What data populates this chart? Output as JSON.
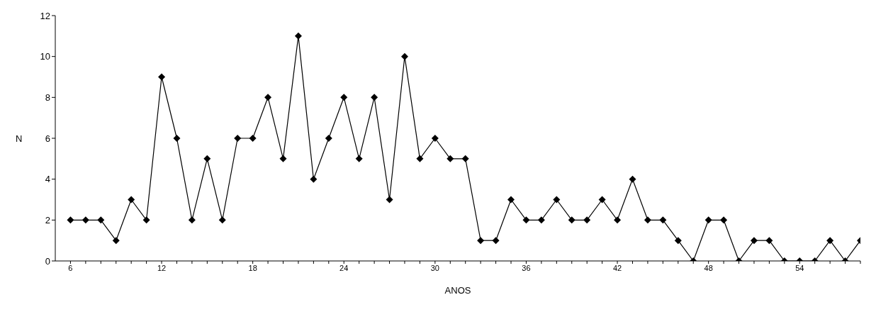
{
  "chart_data": {
    "type": "line",
    "xlabel": "ANOS",
    "ylabel": "N",
    "x": [
      6,
      7,
      8,
      9,
      10,
      11,
      12,
      13,
      14,
      15,
      16,
      17,
      18,
      19,
      20,
      21,
      22,
      23,
      24,
      25,
      26,
      27,
      28,
      29,
      30,
      31,
      32,
      33,
      34,
      35,
      36,
      37,
      38,
      39,
      40,
      41,
      42,
      43,
      44,
      45,
      46,
      47,
      48,
      49,
      50,
      51,
      52,
      53,
      54,
      55,
      56,
      57,
      58
    ],
    "series": [
      {
        "color": "#000000",
        "values": [
          2,
          2,
          2,
          1,
          3,
          2,
          9,
          6,
          2,
          5,
          2,
          6,
          6,
          8,
          5,
          11,
          4,
          6,
          8,
          5,
          8,
          3,
          10,
          5,
          6,
          5,
          5,
          1,
          1,
          3,
          2,
          2,
          3,
          2,
          2,
          3,
          2,
          4,
          2,
          2,
          1,
          0,
          2,
          2,
          0,
          1,
          1,
          0,
          0,
          0,
          1,
          0,
          1
        ]
      }
    ],
    "xlim": [
      5,
      58
    ],
    "xticks": [
      6,
      {
        "value": 7,
        "label": null
      },
      {
        "value": 8,
        "label": null
      },
      {
        "value": 9,
        "label": null
      },
      {
        "value": 10,
        "label": null
      },
      {
        "value": 11,
        "label": null
      },
      12,
      {
        "value": 13,
        "label": null
      },
      {
        "value": 14,
        "label": null
      },
      {
        "value": 15,
        "label": null
      },
      {
        "value": 16,
        "label": null
      },
      {
        "value": 17,
        "label": null
      },
      18,
      {
        "value": 19,
        "label": null
      },
      {
        "value": 20,
        "label": null
      },
      {
        "value": 21,
        "label": null
      },
      {
        "value": 22,
        "label": null
      },
      {
        "value": 23,
        "label": null
      },
      24,
      {
        "value": 25,
        "label": null
      },
      {
        "value": 26,
        "label": null
      },
      {
        "value": 27,
        "label": null
      },
      {
        "value": 28,
        "label": null
      },
      {
        "value": 29,
        "label": null
      },
      30,
      {
        "value": 31,
        "label": null
      },
      {
        "value": 32,
        "label": null
      },
      {
        "value": 33,
        "label": null
      },
      {
        "value": 34,
        "label": null
      },
      {
        "value": 35,
        "label": null
      },
      36,
      {
        "value": 37,
        "label": null
      },
      {
        "value": 38,
        "label": null
      },
      {
        "value": 39,
        "label": null
      },
      {
        "value": 40,
        "label": null
      },
      {
        "value": 41,
        "label": null
      },
      42,
      {
        "value": 43,
        "label": null
      },
      {
        "value": 44,
        "label": null
      },
      {
        "value": 45,
        "label": null
      },
      {
        "value": 46,
        "label": null
      },
      {
        "value": 47,
        "label": null
      },
      48,
      {
        "value": 49,
        "label": null
      },
      {
        "value": 50,
        "label": null
      },
      {
        "value": 51,
        "label": null
      },
      {
        "value": 52,
        "label": null
      },
      {
        "value": 53,
        "label": null
      },
      54,
      {
        "value": 55,
        "label": null
      },
      {
        "value": 56,
        "label": null
      },
      {
        "value": 57,
        "label": null
      },
      {
        "value": 58,
        "label": null
      }
    ],
    "ylim": [
      0,
      12
    ],
    "yticks": [
      0,
      2,
      4,
      6,
      8,
      10,
      12
    ],
    "grid": false,
    "legend": false,
    "marker": "diamond",
    "line_style": "solid"
  }
}
